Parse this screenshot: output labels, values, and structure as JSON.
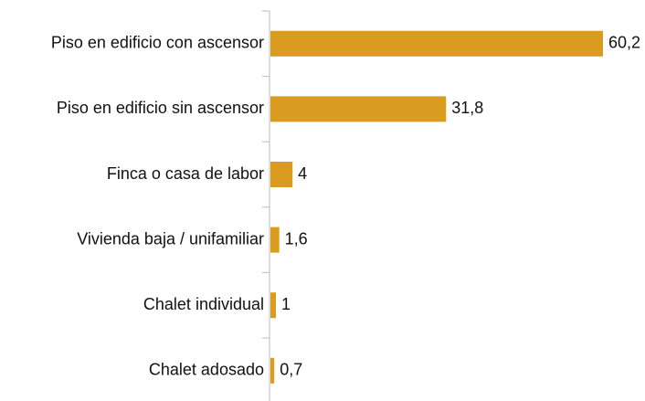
{
  "chart_data": {
    "type": "bar",
    "orientation": "horizontal",
    "categories": [
      "Piso en edificio con ascensor",
      "Piso en edificio sin ascensor",
      "Finca o casa de labor",
      "Vivienda baja / unifamiliar",
      "Chalet individual",
      "Chalet adosado"
    ],
    "values": [
      60.2,
      31.8,
      4,
      1.6,
      1,
      0.7
    ],
    "value_labels": [
      "60,2",
      "31,8",
      "4",
      "1,6",
      "1",
      "0,7"
    ],
    "color": "#da9c20"
  }
}
